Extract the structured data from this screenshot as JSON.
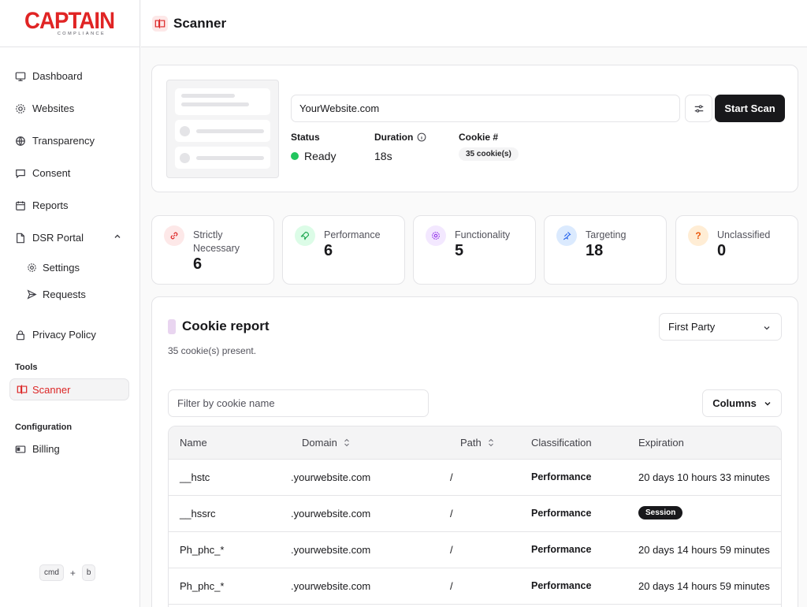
{
  "logo": {
    "main": "CAPTAIN",
    "sub": "COMPLIANCE"
  },
  "sidebar": {
    "items": [
      {
        "label": "Dashboard",
        "icon": "monitor-icon"
      },
      {
        "label": "Websites",
        "icon": "globe-outline-icon"
      },
      {
        "label": "Transparency",
        "icon": "globe-icon"
      },
      {
        "label": "Consent",
        "icon": "message-square-icon"
      },
      {
        "label": "Reports",
        "icon": "calendar-icon"
      },
      {
        "label": "DSR Portal",
        "icon": "file-icon"
      }
    ],
    "dsr_sub": [
      {
        "label": "Settings",
        "icon": "gear-icon"
      },
      {
        "label": "Requests",
        "icon": "send-icon"
      }
    ],
    "privacy": {
      "label": "Privacy Policy",
      "icon": "lock-icon"
    },
    "tools_label": "Tools",
    "scanner_label": "Scanner",
    "config_label": "Configuration",
    "billing_label": "Billing",
    "shortcut": {
      "key1": "cmd",
      "plus": "+",
      "key2": "b"
    }
  },
  "header": {
    "title": "Scanner"
  },
  "scan": {
    "url": "YourWebsite.com",
    "start_label": "Start Scan",
    "status_label": "Status",
    "status_value": "Ready",
    "duration_label": "Duration",
    "duration_value": "18s",
    "cookie_label": "Cookie #",
    "cookie_value": "35 cookie(s)"
  },
  "categories": [
    {
      "name": "Strictly Necessary",
      "count": "6",
      "icon": "link-icon",
      "color": "#dc2626"
    },
    {
      "name": "Performance",
      "count": "6",
      "icon": "rocket-icon",
      "color": "#16a34a"
    },
    {
      "name": "Functionality",
      "count": "5",
      "icon": "gear-icon",
      "color": "#9333ea"
    },
    {
      "name": "Targeting",
      "count": "18",
      "icon": "pin-icon",
      "color": "#2563eb"
    },
    {
      "name": "Unclassified",
      "count": "0",
      "icon": "question-icon",
      "color": "#ea580c"
    }
  ],
  "report": {
    "title": "Cookie report",
    "subtitle": "35 cookie(s) present.",
    "party": "First Party",
    "filter_placeholder": "Filter by cookie name",
    "columns_label": "Columns",
    "headers": [
      "Name",
      "Domain",
      "Path",
      "Classification",
      "Expiration"
    ],
    "rows": [
      {
        "name": "__hstc",
        "domain": ".yourwebsite.com",
        "path": "/",
        "classification": "Performance",
        "expiration": "20 days 10 hours 33 minutes"
      },
      {
        "name": "__hssrc",
        "domain": ".yourwebsite.com",
        "path": "/",
        "classification": "Performance",
        "expiration": "Session"
      },
      {
        "name": "Ph_phc_*",
        "domain": ".yourwebsite.com",
        "path": "/",
        "classification": "Performance",
        "expiration": "20 days 14 hours 59 minutes"
      },
      {
        "name": "Ph_phc_*",
        "domain": ".yourwebsite.com",
        "path": "/",
        "classification": "Performance",
        "expiration": "20 days 14 hours 59 minutes"
      }
    ]
  },
  "colors": {
    "brand": "#e02424",
    "accent": "#18181b",
    "ready": "#22c55e"
  }
}
